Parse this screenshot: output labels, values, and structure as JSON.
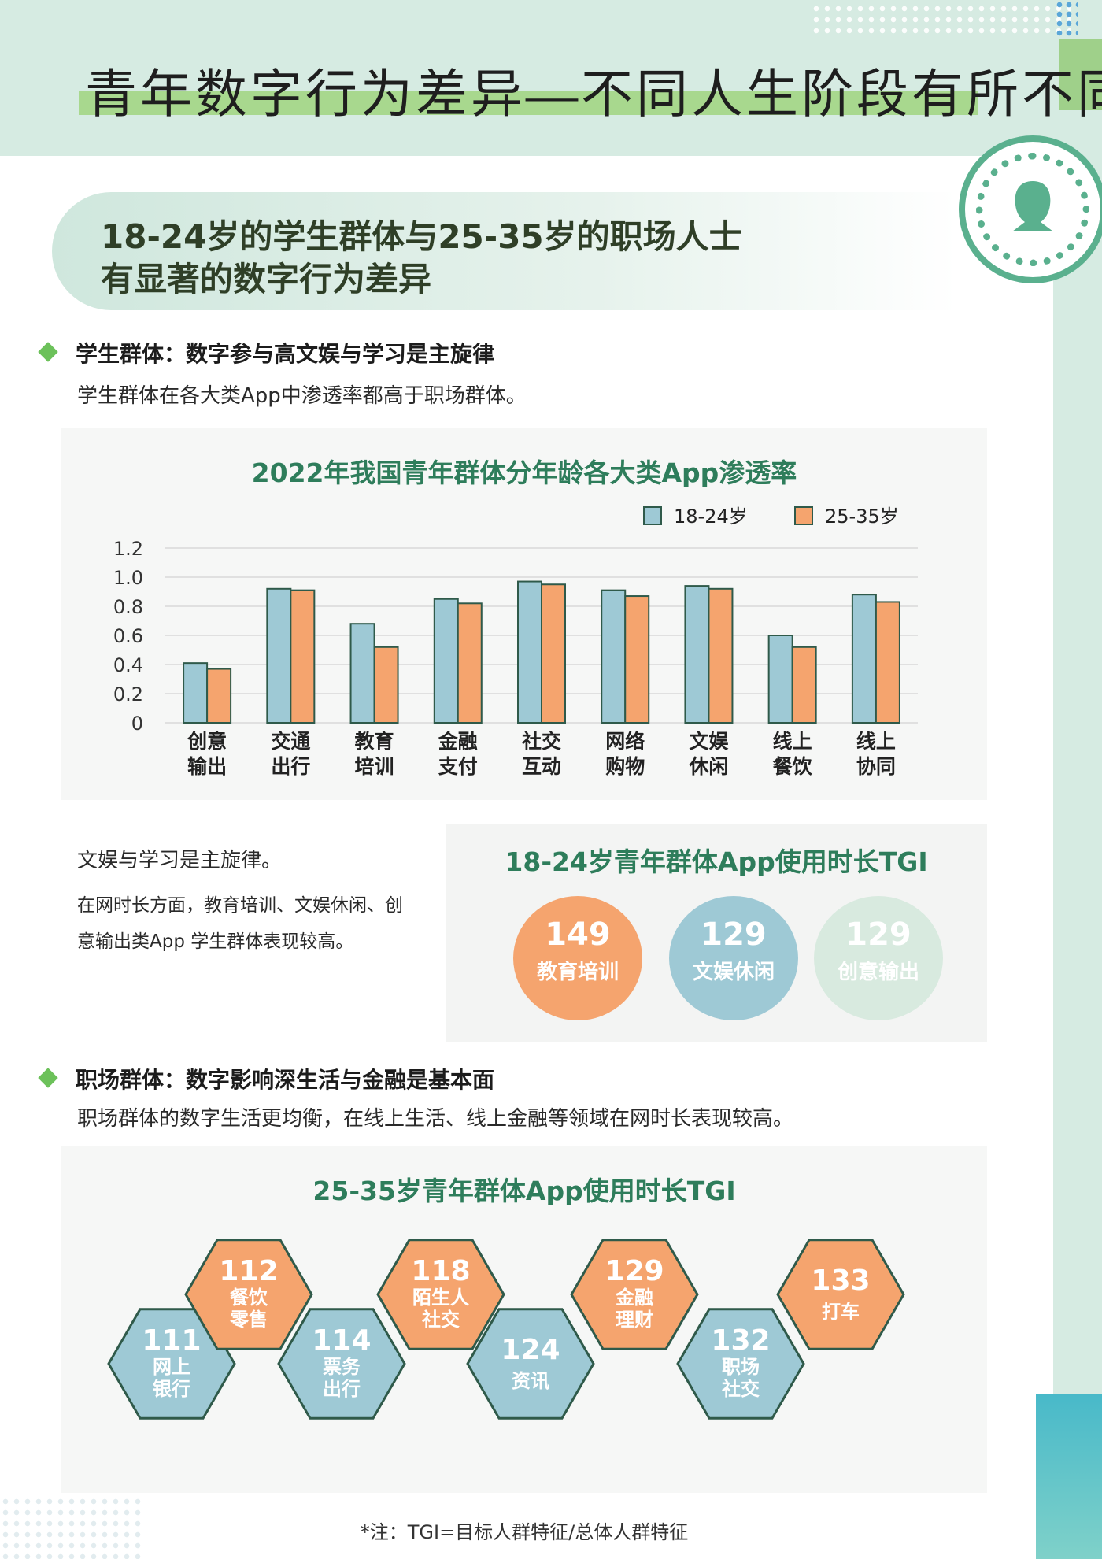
{
  "header": {
    "title": "青年数字行为差异—不同人生阶段有所不同"
  },
  "banner": {
    "line1": "18-24岁的学生群体与25-35岁的职场人士",
    "line2": "有显著的数字行为差异"
  },
  "student_section": {
    "heading": "学生群体：数字参与高文娱与学习是主旋律",
    "subtext": "学生群体在各大类App中渗透率都高于职场群体。",
    "note_title": "文娱与学习是主旋律。",
    "note_body": "在网时长方面，教育培训、文娱休闲、创意输出类App 学生群体表现较高。"
  },
  "work_section": {
    "heading": "职场群体：数字影响深生活与金融是基本面",
    "subtext": "职场群体的数字生活更均衡，在线上生活、线上金融等领域在网时长表现较高。"
  },
  "colors": {
    "blue": "#9ec9d5",
    "orange": "#f5a46e",
    "pale_green": "#d8eadf",
    "stroke": "#2f5a4a",
    "title_green": "#2e7d5b"
  },
  "icons": [
    "user-icon"
  ],
  "chart_data": [
    {
      "type": "bar",
      "title": "2022年我国青年群体分年龄各大类App渗透率",
      "categories": [
        [
          "创意",
          "输出"
        ],
        [
          "交通",
          "出行"
        ],
        [
          "教育",
          "培训"
        ],
        [
          "金融",
          "支付"
        ],
        [
          "社交",
          "互动"
        ],
        [
          "网络",
          "购物"
        ],
        [
          "文娱",
          "休闲"
        ],
        [
          "线上",
          "餐饮"
        ],
        [
          "线上",
          "协同"
        ]
      ],
      "series": [
        {
          "name": "18-24岁",
          "values": [
            0.41,
            0.92,
            0.68,
            0.85,
            0.97,
            0.91,
            0.94,
            0.6,
            0.88
          ]
        },
        {
          "name": "25-35岁",
          "values": [
            0.37,
            0.91,
            0.52,
            0.82,
            0.95,
            0.87,
            0.92,
            0.52,
            0.83
          ]
        }
      ],
      "ylim": [
        0,
        1.2
      ],
      "yticks": [
        "0",
        "0.2",
        "0.4",
        "0.6",
        "0.8",
        "1.0",
        "1.2"
      ],
      "legend_position": "top-right",
      "grid": true
    },
    {
      "type": "bubble",
      "title": "18-24岁青年群体App使用时长TGI",
      "items": [
        {
          "label": "教育培训",
          "value": 149
        },
        {
          "label": "文娱休闲",
          "value": 129
        },
        {
          "label": "创意输出",
          "value": 129
        }
      ]
    },
    {
      "type": "hexagon",
      "title": "25-35岁青年群体App使用时长TGI",
      "items": [
        {
          "label": [
            "网上",
            "银行"
          ],
          "value": 111
        },
        {
          "label": [
            "餐饮",
            "零售"
          ],
          "value": 112
        },
        {
          "label": [
            "票务",
            "出行"
          ],
          "value": 114
        },
        {
          "label": [
            "陌生人",
            "社交"
          ],
          "value": 118
        },
        {
          "label": [
            "资讯"
          ],
          "value": 124
        },
        {
          "label": [
            "金融",
            "理财"
          ],
          "value": 129
        },
        {
          "label": [
            "职场",
            "社交"
          ],
          "value": 132
        },
        {
          "label": [
            "打车"
          ],
          "value": 133
        }
      ]
    }
  ],
  "footnote": "*注：TGI=目标人群特征/总体人群特征"
}
